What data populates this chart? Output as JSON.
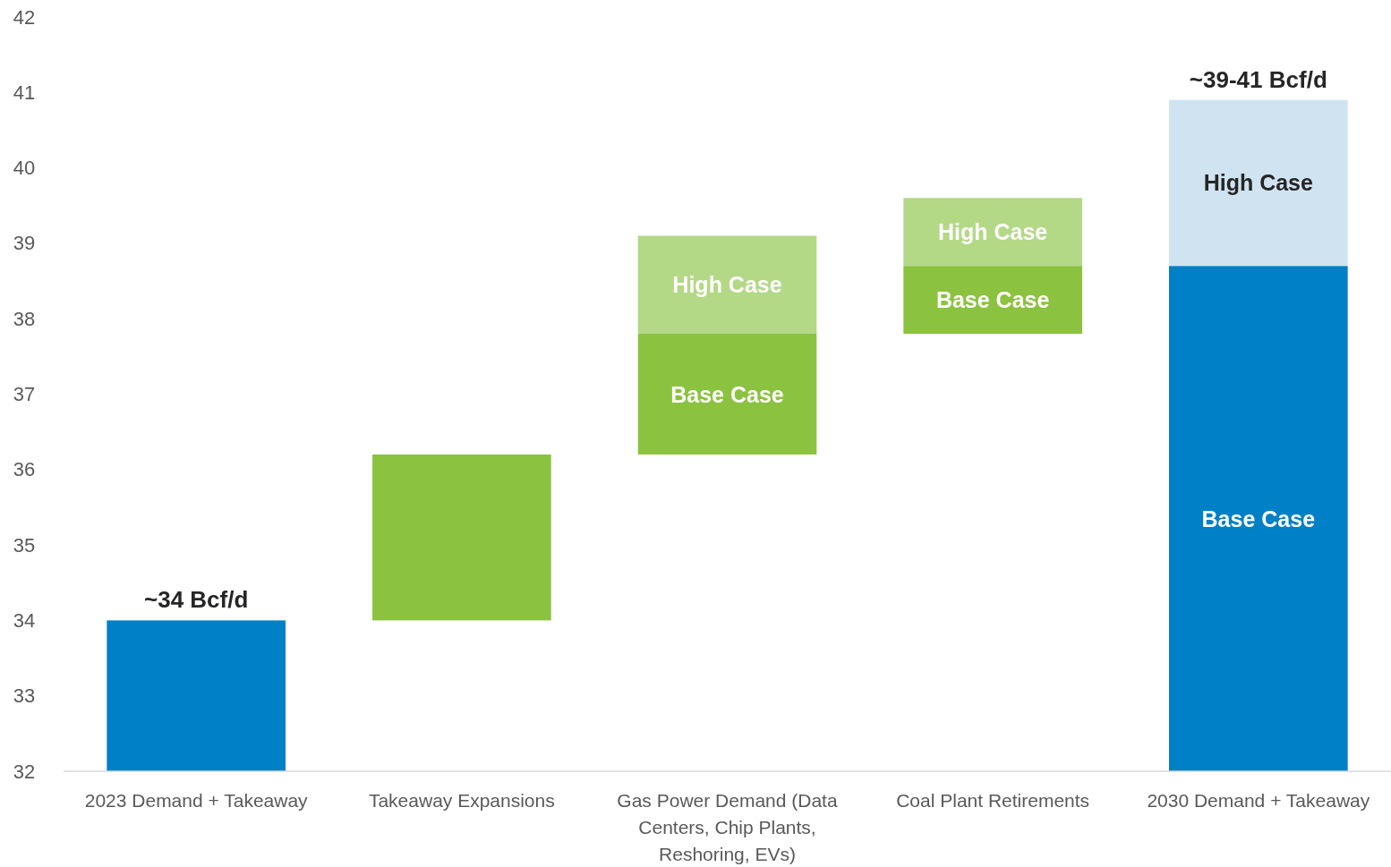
{
  "chart_data": {
    "type": "bar",
    "categories": [
      "2023 Demand + Takeaway",
      "Takeaway Expansions",
      "Gas Power Demand (Data Centers, Chip Plants, Reshoring, EVs)",
      "Coal Plant Retirements",
      "2030 Demand + Takeaway"
    ],
    "series": [
      {
        "colors": [
          "#0080c6",
          "#8bc240",
          null,
          null,
          null
        ],
        "base": [
          32,
          34,
          null,
          null,
          null
        ],
        "values": [
          2.0,
          2.2,
          null,
          null,
          null
        ],
        "value_labels": [
          "~34 Bcf/d",
          null,
          null,
          null,
          null
        ]
      },
      {
        "name": "Base Case",
        "colors": [
          null,
          null,
          "#8bc240",
          "#8bc240",
          "#0080c6"
        ],
        "base": [
          null,
          null,
          36.2,
          37.8,
          32
        ],
        "values": [
          null,
          null,
          1.6,
          0.9,
          6.7
        ]
      },
      {
        "name": "High Case",
        "colors": [
          null,
          null,
          "#b3d886",
          "#b3d886",
          "#d0e3f1"
        ],
        "base": [
          null,
          null,
          37.8,
          38.7,
          38.7
        ],
        "values": [
          null,
          null,
          1.3,
          0.9,
          2.2
        ],
        "value_labels": [
          null,
          null,
          null,
          null,
          "~39-41 Bcf/d"
        ]
      }
    ],
    "ylim": [
      32,
      42
    ],
    "yticks": [
      32,
      33,
      34,
      35,
      36,
      37,
      38,
      39,
      40,
      41,
      42
    ],
    "grid": false
  }
}
